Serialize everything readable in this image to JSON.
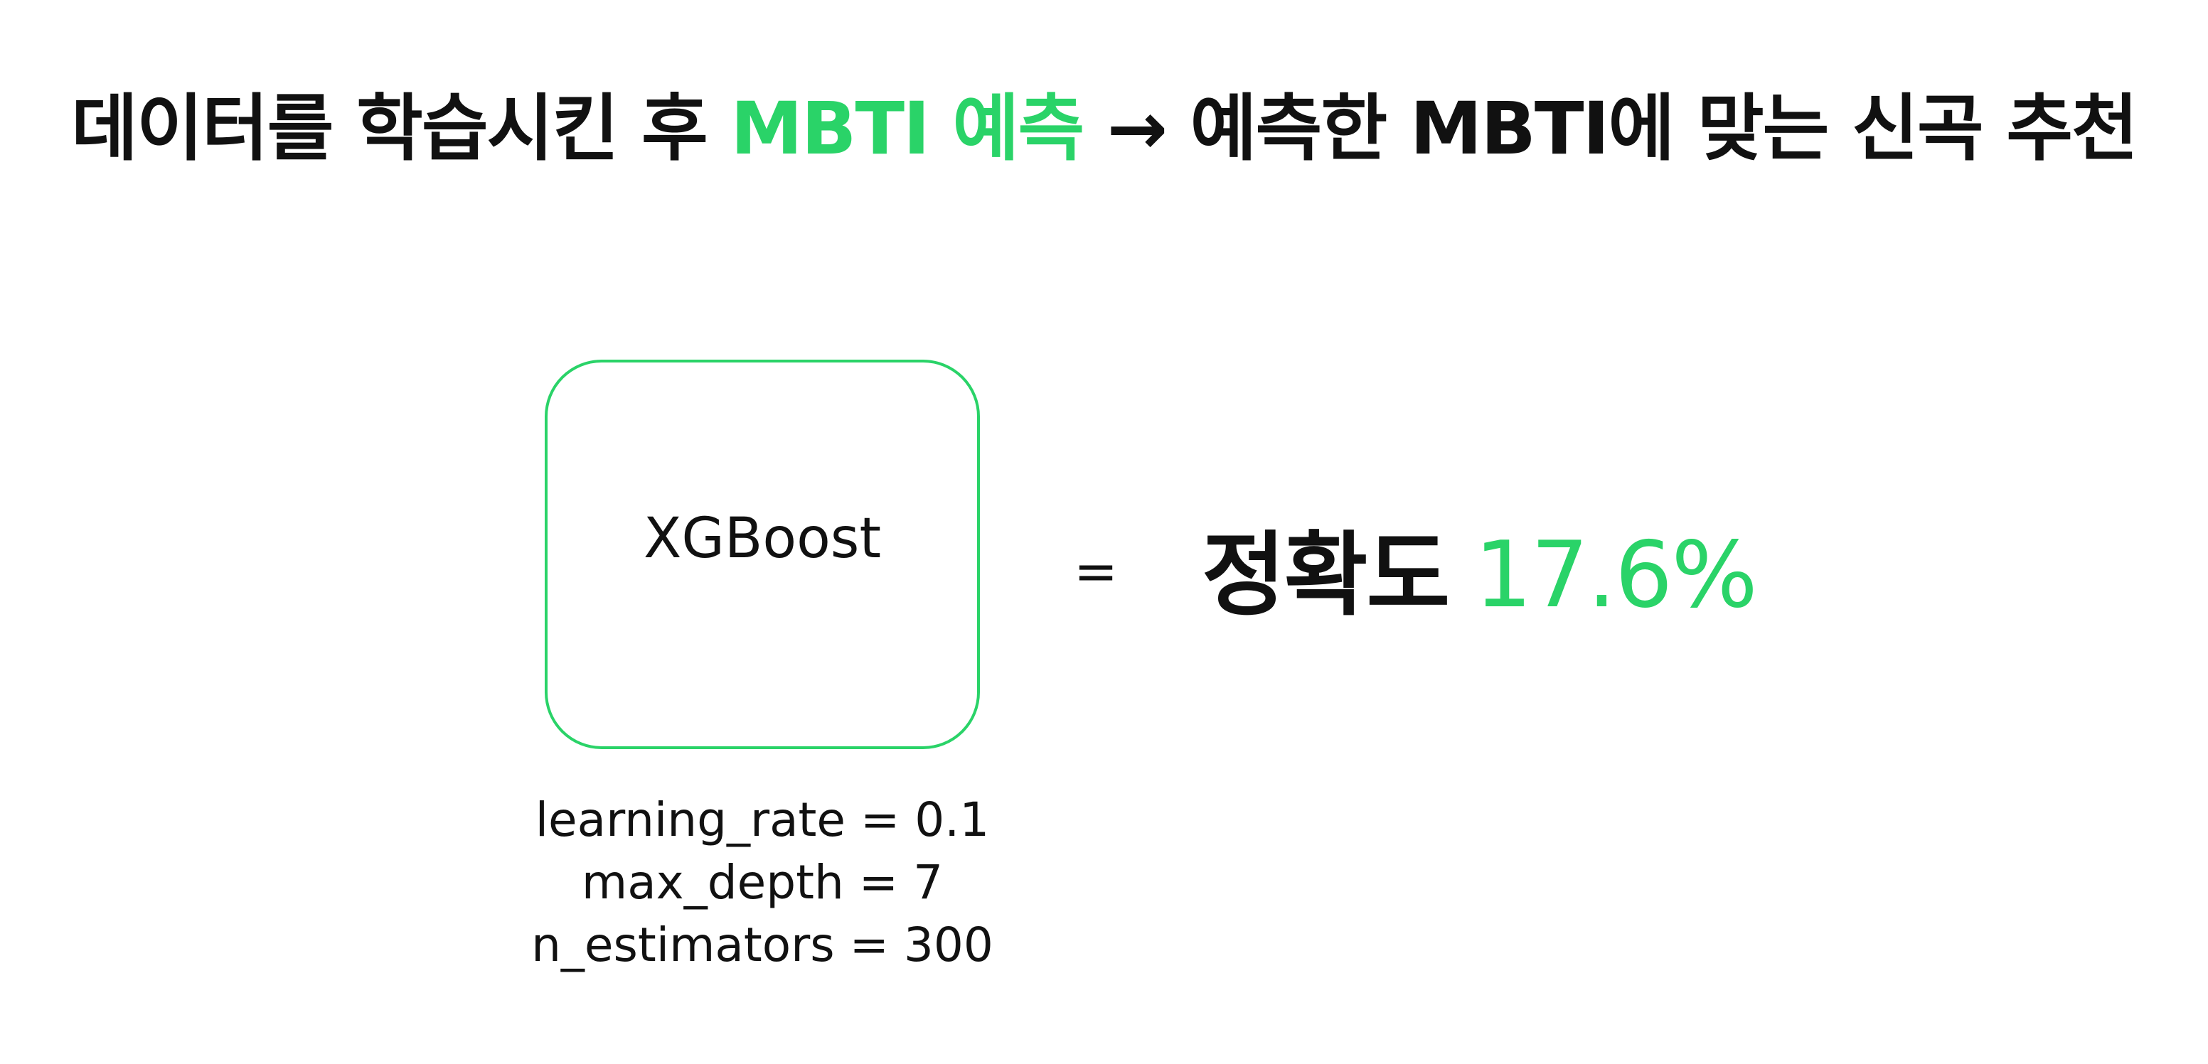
{
  "title": {
    "part1": "데이터를 학습시킨 후 ",
    "highlight": "MBTI 예측",
    "part2": " → 예측한 MBTI에 맞는 신곡 추천"
  },
  "model": {
    "name": "XGBoost",
    "params": [
      "learning_rate = 0.1",
      "max_depth = 7",
      "n_estimators = 300"
    ]
  },
  "result": {
    "equals": "=",
    "label": "정확도",
    "value": "17.6%"
  },
  "colors": {
    "accent": "#2ad368",
    "text": "#111111",
    "background": "#ffffff"
  }
}
